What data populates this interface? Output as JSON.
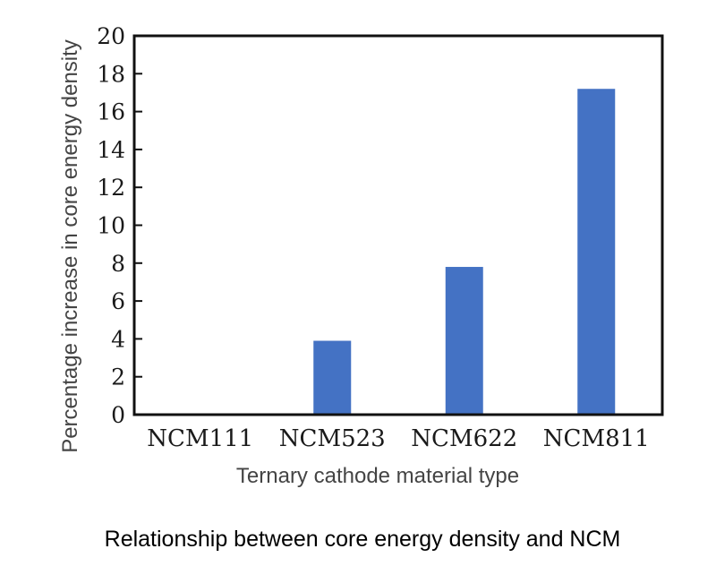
{
  "chart_data": {
    "type": "bar",
    "categories": [
      "NCM111",
      "NCM523",
      "NCM622",
      "NCM811"
    ],
    "values": [
      0,
      3.9,
      7.8,
      17.2
    ],
    "ylim": [
      0,
      20
    ],
    "yticks": [
      0,
      2,
      4,
      6,
      8,
      10,
      12,
      14,
      16,
      18,
      20
    ],
    "xlabel": "Ternary cathode material type",
    "ylabel": "Percentage increase in core energy density",
    "grid": false,
    "bar_color": "#4472C4"
  },
  "caption": "Relationship between core energy density and NCM"
}
